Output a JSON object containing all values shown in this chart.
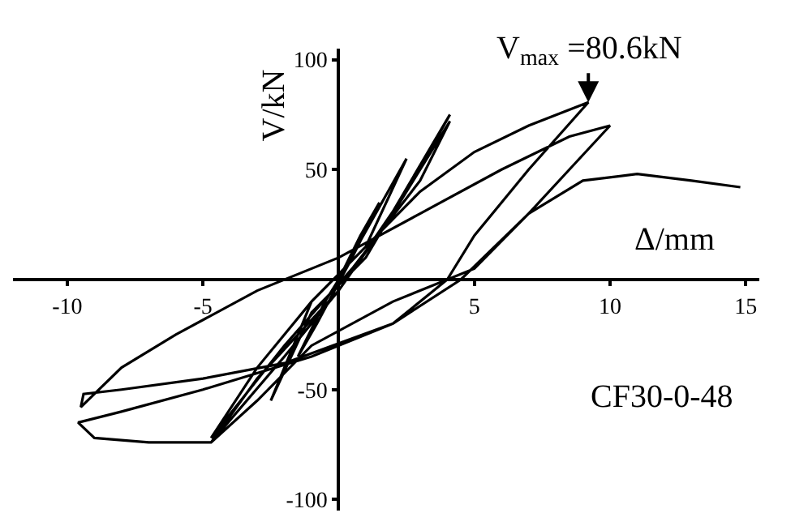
{
  "chart_data": {
    "type": "line",
    "xlabel": "Δ/mm",
    "ylabel": "V/kN",
    "xlim": [
      -12,
      15.5
    ],
    "ylim": [
      -105,
      105
    ],
    "xticks": [
      -10,
      -5,
      5,
      10,
      15
    ],
    "yticks": [
      -100,
      -50,
      50,
      100
    ],
    "marker": "none",
    "line_style": "solid",
    "x": [
      0,
      0.8,
      1.5,
      0.5,
      -0.8,
      -1.5,
      -0.5,
      0,
      2.5,
      1.0,
      -1.0,
      -2.5,
      -1.0,
      1.0,
      4.1,
      2.5,
      0,
      -2,
      -4.7,
      -3,
      0,
      2,
      4.1,
      3,
      0.5,
      -2,
      -4.7,
      -3,
      -1,
      1,
      3,
      5,
      7,
      9.2,
      7,
      5,
      4,
      2,
      -2,
      -5,
      -8,
      -9.4,
      -9.5,
      -8,
      -6,
      -3,
      0,
      3,
      6,
      8.5,
      10,
      8.5,
      7,
      4.5,
      2,
      -1,
      -5,
      -8,
      -9.6,
      -9,
      -7,
      -4.7,
      -3,
      -1,
      2,
      5,
      7,
      9,
      11,
      13,
      14.8
    ],
    "series": [
      {
        "color": "#000000",
        "values": [
          0,
          20,
          35,
          10,
          -20,
          -35,
          -10,
          0,
          55,
          15,
          -10,
          -55,
          -15,
          10,
          75,
          40,
          -5,
          -35,
          -74,
          -45,
          -5,
          30,
          72,
          45,
          5,
          -30,
          -72,
          -40,
          -10,
          15,
          40,
          58,
          70,
          80.6,
          50,
          20,
          0,
          -20,
          -38,
          -45,
          -50,
          -52,
          -58,
          -40,
          -25,
          -5,
          10,
          30,
          50,
          65,
          70,
          50,
          30,
          0,
          -20,
          -35,
          -50,
          -60,
          -65,
          -72,
          -74,
          -74,
          -55,
          -30,
          -10,
          5,
          30,
          45,
          48,
          45,
          42
        ]
      }
    ],
    "annotations": [
      {
        "text": "V$_{max}$ =80.6kN",
        "x": 9.2,
        "y": 80.6
      },
      "CF30-0-48"
    ]
  }
}
